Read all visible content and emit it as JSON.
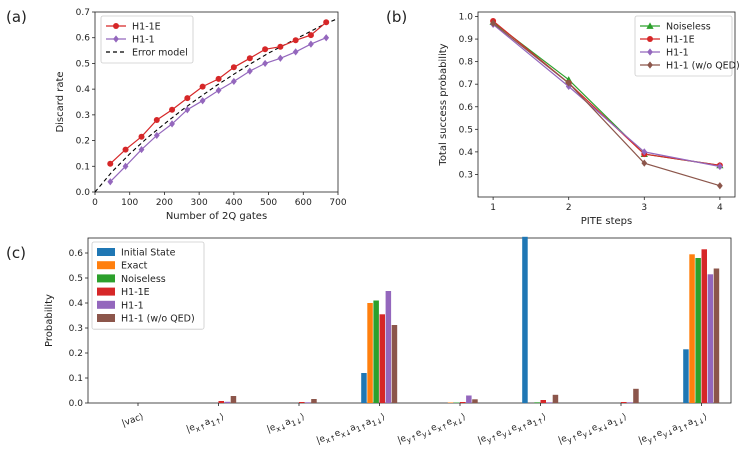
{
  "panels": {
    "a": "(a)",
    "b": "(b)",
    "c": "(c)"
  },
  "chart_data": [
    {
      "id": "a",
      "type": "line",
      "xlabel": "Number of 2Q gates",
      "ylabel": "Discard rate",
      "xlim": [
        0,
        700
      ],
      "ylim": [
        0,
        0.7
      ],
      "xticks": [
        0,
        100,
        200,
        300,
        400,
        500,
        600,
        700
      ],
      "yticks": [
        0.0,
        0.1,
        0.2,
        0.3,
        0.4,
        0.5,
        0.6,
        0.7
      ],
      "legend_position": "top-left",
      "series": [
        {
          "name": "H1-1E",
          "color": "#d62728",
          "marker": "circle",
          "x": [
            44,
            88,
            134,
            178,
            222,
            266,
            310,
            356,
            400,
            446,
            490,
            534,
            578,
            622,
            666
          ],
          "y": [
            0.11,
            0.165,
            0.215,
            0.28,
            0.32,
            0.365,
            0.41,
            0.44,
            0.485,
            0.52,
            0.555,
            0.565,
            0.59,
            0.61,
            0.66
          ]
        },
        {
          "name": "H1-1",
          "color": "#9467bd",
          "marker": "diamond",
          "x": [
            44,
            88,
            134,
            178,
            222,
            266,
            310,
            356,
            400,
            446,
            490,
            534,
            578,
            622,
            666
          ],
          "y": [
            0.04,
            0.1,
            0.165,
            0.22,
            0.265,
            0.32,
            0.355,
            0.395,
            0.43,
            0.47,
            0.5,
            0.52,
            0.545,
            0.575,
            0.6
          ]
        },
        {
          "name": "Error model",
          "color": "#000000",
          "dash": true,
          "x": [
            0,
            50,
            100,
            150,
            200,
            250,
            300,
            350,
            400,
            450,
            500,
            550,
            600,
            650,
            700
          ],
          "y": [
            0.0,
            0.08,
            0.148,
            0.21,
            0.265,
            0.318,
            0.367,
            0.414,
            0.458,
            0.5,
            0.54,
            0.575,
            0.61,
            0.645,
            0.675
          ]
        }
      ]
    },
    {
      "id": "b",
      "type": "line",
      "xlabel": "PITE steps",
      "ylabel": "Total success probability",
      "xlim": [
        0.8,
        4.2
      ],
      "ylim": [
        0.2,
        1.02
      ],
      "xticks": [
        1,
        2,
        3,
        4
      ],
      "yticks": [
        0.3,
        0.4,
        0.5,
        0.6,
        0.7,
        0.8,
        0.9,
        1.0
      ],
      "legend_position": "top-right",
      "series": [
        {
          "name": "Noiseless",
          "color": "#2ca02c",
          "marker": "triangle",
          "x": [
            1,
            2,
            3,
            4
          ],
          "y": [
            0.975,
            0.72,
            0.39,
            0.34
          ]
        },
        {
          "name": "H1-1E",
          "color": "#d62728",
          "marker": "circle",
          "x": [
            1,
            2,
            3,
            4
          ],
          "y": [
            0.98,
            0.705,
            0.39,
            0.34
          ]
        },
        {
          "name": "H1-1",
          "color": "#9467bd",
          "marker": "diamond",
          "x": [
            1,
            2,
            3,
            4
          ],
          "y": [
            0.965,
            0.69,
            0.4,
            0.335
          ]
        },
        {
          "name": "H1-1 (w/o QED)",
          "color": "#8c564b",
          "marker": "diamond",
          "x": [
            1,
            2,
            3,
            4
          ],
          "y": [
            0.97,
            0.705,
            0.35,
            0.25
          ]
        }
      ]
    },
    {
      "id": "c",
      "type": "bar",
      "ylabel": "Probability",
      "ylim": [
        0,
        0.66
      ],
      "yticks": [
        0.0,
        0.1,
        0.2,
        0.3,
        0.4,
        0.5,
        0.6
      ],
      "legend_position": "top-left",
      "categories": [
        {
          "main": "|vac⟩",
          "sub": ""
        },
        {
          "main": "|e",
          "sub": "x↑",
          "main2": "a",
          "sub2": "1↑",
          "close": "⟩"
        },
        {
          "main": "|e",
          "sub": "x↓",
          "main2": "a",
          "sub2": "1↓",
          "close": "⟩"
        },
        {
          "main": "|e",
          "sub": "x↑",
          "main2": "e",
          "sub2": "x↓",
          "main3": "a",
          "sub3": "1↑",
          "main4": "a",
          "sub4": "1↓",
          "close": "⟩"
        },
        {
          "main": "|e",
          "sub": "y↑",
          "main2": "e",
          "sub2": "y↓",
          "main3": "e",
          "sub3": "x↑",
          "main4": "e",
          "sub4": "x↓",
          "close": "⟩"
        },
        {
          "main": "|e",
          "sub": "y↑",
          "main2": "e",
          "sub2": "y↓",
          "main3": "e",
          "sub3": "x↑",
          "main4": "a",
          "sub4": "1↑",
          "close": "⟩"
        },
        {
          "main": "|e",
          "sub": "y↑",
          "main2": "e",
          "sub2": "y↓",
          "main3": "e",
          "sub3": "x↓",
          "main4": "a",
          "sub4": "1↓",
          "close": "⟩"
        },
        {
          "main": "|e",
          "sub": "y↑",
          "main2": "e",
          "sub2": "y↓",
          "main3": "a",
          "sub3": "1↑",
          "main4": "a",
          "sub4": "1↓",
          "close": "⟩"
        }
      ],
      "series": [
        {
          "name": "Initial State",
          "color": "#1f77b4",
          "values": [
            0,
            0,
            0,
            0.12,
            0,
            0.665,
            0,
            0.215
          ]
        },
        {
          "name": "Exact",
          "color": "#ff7f0e",
          "values": [
            0,
            0,
            0,
            0.4,
            0.002,
            0,
            0,
            0.595
          ]
        },
        {
          "name": "Noiseless",
          "color": "#2ca02c",
          "values": [
            0,
            0,
            0,
            0.41,
            0.002,
            0.003,
            0,
            0.58
          ]
        },
        {
          "name": "H1-1E",
          "color": "#d62728",
          "values": [
            0,
            0.008,
            0.004,
            0.355,
            0.004,
            0.012,
            0.004,
            0.615
          ]
        },
        {
          "name": "H1-1",
          "color": "#9467bd",
          "values": [
            0,
            0.005,
            0.003,
            0.448,
            0.03,
            0.003,
            0.003,
            0.515
          ]
        },
        {
          "name": "H1-1 (w/o QED)",
          "color": "#8c564b",
          "values": [
            0,
            0.028,
            0.016,
            0.312,
            0.015,
            0.033,
            0.057,
            0.538
          ]
        }
      ]
    }
  ]
}
